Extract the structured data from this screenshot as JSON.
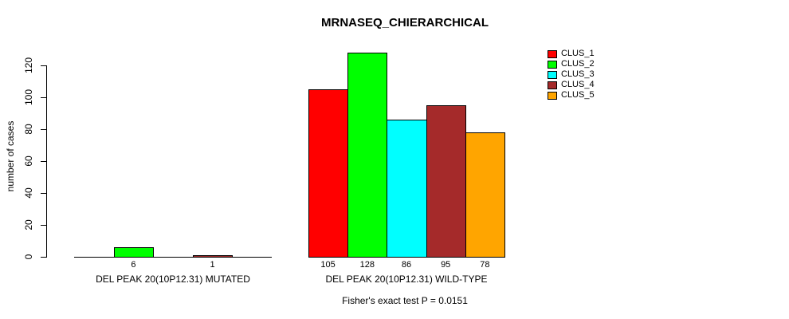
{
  "title": "MRNASEQ_CHIERARCHICAL",
  "chart_data": {
    "type": "bar",
    "title": "MRNASEQ_CHIERARCHICAL",
    "ylabel": "number of cases",
    "xlabel": "",
    "ylim": [
      0,
      130
    ],
    "yticks": [
      0,
      20,
      40,
      60,
      80,
      100,
      120
    ],
    "grid": false,
    "legend_position": "top-right",
    "legend": [
      {
        "name": "CLUS_1",
        "color": "#FF0000"
      },
      {
        "name": "CLUS_2",
        "color": "#00FF00"
      },
      {
        "name": "CLUS_3",
        "color": "#00FFFF"
      },
      {
        "name": "CLUS_4",
        "color": "#A52A2A"
      },
      {
        "name": "CLUS_5",
        "color": "#FFA500"
      }
    ],
    "groups": [
      {
        "label": "DEL PEAK 20(10P12.31) MUTATED",
        "values": [
          0,
          6,
          0,
          1,
          0
        ]
      },
      {
        "label": "DEL PEAK 20(10P12.31) WILD-TYPE",
        "values": [
          105,
          128,
          86,
          95,
          78
        ]
      }
    ],
    "annotation": "Fisher's exact test P = 0.0151"
  }
}
